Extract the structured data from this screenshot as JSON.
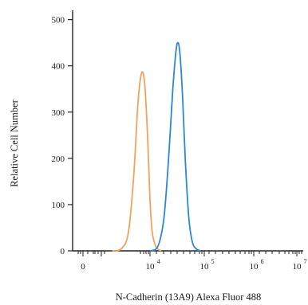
{
  "chart_data": {
    "type": "line",
    "title": "",
    "xlabel": "N-Cadherin (13A9) Alexa Fluor 488",
    "ylabel": "Relative Cell Number",
    "xscale": "log",
    "y_ticks": [
      0,
      100,
      200,
      300,
      400,
      500
    ],
    "ylim": [
      0,
      520
    ],
    "x_ticks": [
      {
        "base": "0",
        "exp": ""
      },
      {
        "base": "10",
        "exp": "4"
      },
      {
        "base": "10",
        "exp": "5"
      },
      {
        "base": "10",
        "exp": "6"
      },
      {
        "base": "10",
        "exp": "7"
      }
    ],
    "grid": false,
    "legend": "none",
    "series": [
      {
        "color": "#f0a35e",
        "x": [
          2000,
          3000,
          4000,
          5000,
          6000,
          7000,
          8000,
          9000,
          10000,
          11000,
          13000,
          16000
        ],
        "y": [
          0,
          5,
          40,
          160,
          320,
          385,
          360,
          250,
          110,
          40,
          8,
          0
        ]
      },
      {
        "color": "#2f86d4",
        "x": [
          10000,
          14000,
          18000,
          22000,
          26000,
          30000,
          33000,
          36000,
          40000,
          45000,
          52000,
          60000,
          70000,
          85000
        ],
        "y": [
          0,
          10,
          70,
          200,
          340,
          430,
          450,
          420,
          330,
          190,
          70,
          20,
          5,
          0
        ]
      }
    ]
  }
}
